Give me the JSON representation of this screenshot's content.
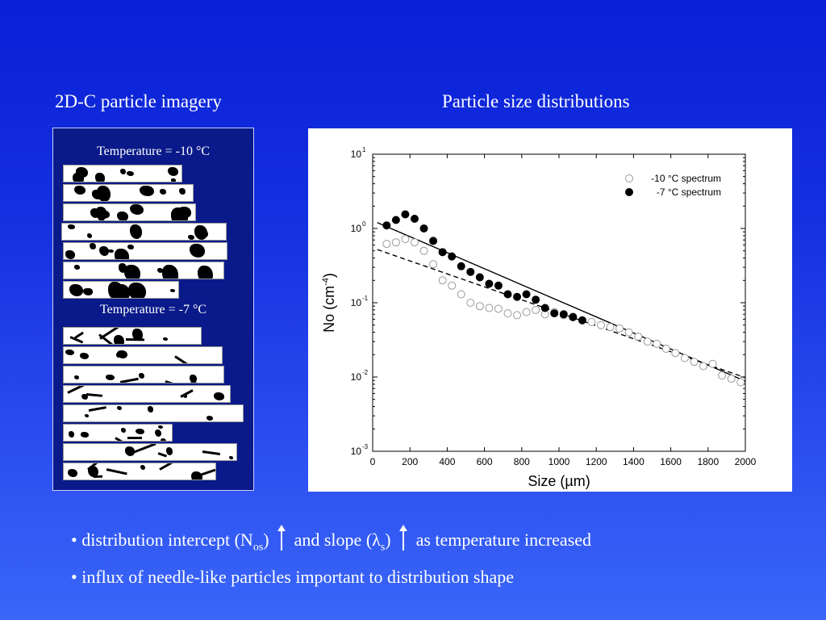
{
  "headings": {
    "left": "2D-C particle imagery",
    "right": "Particle size distributions"
  },
  "imagery": {
    "label_top": "Temperature = -10 °C",
    "label_bottom": "Temperature = -7 °C"
  },
  "bullets": {
    "b1_part1": "• distribution intercept (N",
    "b1_sub1": "os",
    "b1_part2": ")",
    "b1_part3": "and slope (λ",
    "b1_sub2": "s",
    "b1_part4": ")",
    "b1_part5": "as temperature increased",
    "b2": "• influx of needle-like particles important to distribution shape"
  },
  "chart_data": {
    "type": "scatter",
    "xlabel": "Size (µm)",
    "ylabel": "No (cm",
    "ylabel_sup": "-4",
    "ylabel_end": ")",
    "xlim": [
      0,
      2000
    ],
    "ylim_log10": [
      -3,
      1
    ],
    "y_scale": "log",
    "x_ticks": [
      "0",
      "200",
      "400",
      "600",
      "800",
      "1000",
      "1200",
      "1400",
      "1600",
      "1800",
      "2000"
    ],
    "y_ticks": [
      {
        "base": "10",
        "exp": "1"
      },
      {
        "base": "10",
        "exp": "0"
      },
      {
        "base": "10",
        "exp": "-1"
      },
      {
        "base": "10",
        "exp": "-2"
      },
      {
        "base": "10",
        "exp": "-3"
      }
    ],
    "legend_position": "top-right",
    "series": [
      {
        "name": "-10 °C spectrum",
        "marker": "open-circle",
        "x": [
          75,
          125,
          175,
          225,
          275,
          325,
          375,
          425,
          475,
          525,
          575,
          625,
          675,
          725,
          775,
          825,
          875,
          925,
          975,
          1025,
          1075,
          1125,
          1175,
          1225,
          1275,
          1325,
          1375,
          1425,
          1475,
          1525,
          1575,
          1625,
          1675,
          1725,
          1775,
          1825,
          1875,
          1925,
          1975
        ],
        "y": [
          0.62,
          0.65,
          0.72,
          0.65,
          0.5,
          0.33,
          0.2,
          0.17,
          0.13,
          0.1,
          0.09,
          0.085,
          0.083,
          0.072,
          0.068,
          0.075,
          0.08,
          0.07,
          0.075,
          0.068,
          0.065,
          0.058,
          0.055,
          0.05,
          0.047,
          0.045,
          0.04,
          0.035,
          0.03,
          0.028,
          0.024,
          0.021,
          0.018,
          0.016,
          0.014,
          0.015,
          0.0105,
          0.0095,
          0.0085
        ]
      },
      {
        "name": "-7 °C spectrum",
        "marker": "filled-circle",
        "x": [
          75,
          125,
          175,
          225,
          275,
          325,
          375,
          425,
          475,
          525,
          575,
          625,
          675,
          725,
          775,
          825,
          875,
          925,
          975,
          1025,
          1075,
          1125
        ],
        "y": [
          1.1,
          1.3,
          1.55,
          1.35,
          1.0,
          0.68,
          0.48,
          0.42,
          0.31,
          0.26,
          0.22,
          0.18,
          0.17,
          0.13,
          0.12,
          0.13,
          0.11,
          0.085,
          0.072,
          0.07,
          0.064,
          0.058
        ]
      }
    ],
    "fit_lines": [
      {
        "style": "solid",
        "x": [
          25,
          2000
        ],
        "y": [
          1.2,
          0.0088
        ]
      },
      {
        "style": "dashed",
        "x": [
          25,
          2000
        ],
        "y": [
          0.52,
          0.0098
        ]
      }
    ]
  }
}
